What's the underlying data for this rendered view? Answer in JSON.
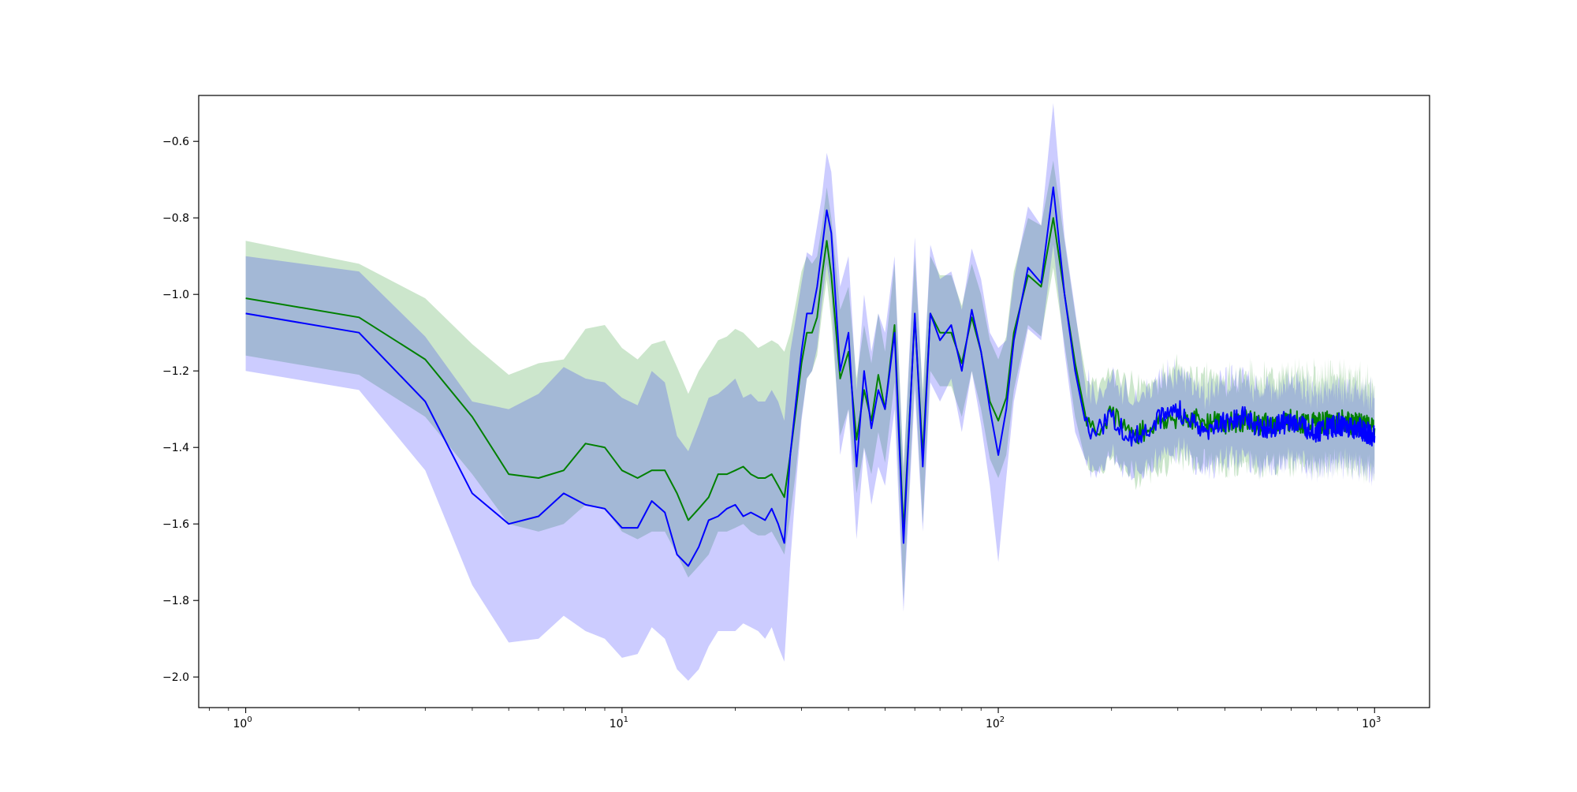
{
  "chart_data": {
    "type": "line",
    "title": "",
    "xlabel": "",
    "ylabel": "",
    "xscale": "log",
    "xlim": [
      0.75,
      1400
    ],
    "ylim": [
      -2.08,
      -0.48
    ],
    "grid": false,
    "legend": "none",
    "x_ticks": [
      {
        "value": 1,
        "base": "10",
        "exp": "0"
      },
      {
        "value": 10,
        "base": "10",
        "exp": "1"
      },
      {
        "value": 100,
        "base": "10",
        "exp": "2"
      },
      {
        "value": 1000,
        "base": "10",
        "exp": "3"
      }
    ],
    "y_ticks": [
      {
        "value": -0.6,
        "label": "−0.6"
      },
      {
        "value": -0.8,
        "label": "−0.8"
      },
      {
        "value": -1.0,
        "label": "−1.0"
      },
      {
        "value": -1.2,
        "label": "−1.2"
      },
      {
        "value": -1.4,
        "label": "−1.4"
      },
      {
        "value": -1.6,
        "label": "−1.6"
      },
      {
        "value": -1.8,
        "label": "−1.8"
      },
      {
        "value": -2.0,
        "label": "−2.0"
      }
    ],
    "series": [
      {
        "color": "#008000",
        "band_color": "#008000",
        "band_opacity": 0.2,
        "x": [
          1,
          2,
          3,
          4,
          5,
          6,
          7,
          8,
          9,
          10,
          11,
          12,
          13,
          14,
          15,
          16,
          17,
          18,
          19,
          20,
          21,
          22,
          23,
          24,
          25,
          26,
          27,
          28,
          29,
          30,
          31,
          32,
          33,
          34,
          35,
          36,
          38,
          40,
          42,
          44,
          46,
          48,
          50,
          53,
          56,
          60,
          63,
          66,
          70,
          75,
          80,
          85,
          90,
          95,
          100,
          105,
          110,
          120,
          130,
          140,
          150,
          160,
          170,
          180,
          200,
          230,
          260,
          300,
          350,
          400,
          450,
          500,
          600,
          700,
          800,
          900,
          1000
        ],
        "y": [
          -1.01,
          -1.06,
          -1.17,
          -1.32,
          -1.47,
          -1.48,
          -1.46,
          -1.39,
          -1.4,
          -1.46,
          -1.48,
          -1.46,
          -1.46,
          -1.52,
          -1.59,
          -1.56,
          -1.53,
          -1.47,
          -1.47,
          -1.46,
          -1.45,
          -1.47,
          -1.48,
          -1.48,
          -1.47,
          -1.5,
          -1.53,
          -1.42,
          -1.3,
          -1.18,
          -1.1,
          -1.1,
          -1.06,
          -0.95,
          -0.86,
          -0.95,
          -1.22,
          -1.15,
          -1.38,
          -1.25,
          -1.33,
          -1.21,
          -1.3,
          -1.08,
          -1.62,
          -1.06,
          -1.42,
          -1.05,
          -1.1,
          -1.1,
          -1.18,
          -1.06,
          -1.15,
          -1.28,
          -1.33,
          -1.27,
          -1.1,
          -0.95,
          -0.98,
          -0.8,
          -1.0,
          -1.18,
          -1.31,
          -1.35,
          -1.31,
          -1.37,
          -1.34,
          -1.32,
          -1.33,
          -1.34,
          -1.33,
          -1.34,
          -1.33,
          -1.34,
          -1.33,
          -1.34,
          -1.35
        ],
        "y_low": [
          -1.16,
          -1.21,
          -1.32,
          -1.47,
          -1.6,
          -1.62,
          -1.6,
          -1.55,
          -1.56,
          -1.62,
          -1.64,
          -1.62,
          -1.62,
          -1.68,
          -1.74,
          -1.71,
          -1.68,
          -1.62,
          -1.62,
          -1.61,
          -1.6,
          -1.62,
          -1.63,
          -1.63,
          -1.62,
          -1.65,
          -1.68,
          -1.58,
          -1.46,
          -1.32,
          -1.22,
          -1.2,
          -1.16,
          -1.05,
          -0.96,
          -1.07,
          -1.37,
          -1.3,
          -1.52,
          -1.4,
          -1.47,
          -1.36,
          -1.44,
          -1.23,
          -1.8,
          -1.22,
          -1.6,
          -1.2,
          -1.24,
          -1.24,
          -1.32,
          -1.2,
          -1.3,
          -1.43,
          -1.48,
          -1.42,
          -1.25,
          -1.08,
          -1.11,
          -0.93,
          -1.13,
          -1.32,
          -1.43,
          -1.46,
          -1.43,
          -1.48,
          -1.45,
          -1.43,
          -1.44,
          -1.45,
          -1.44,
          -1.45,
          -1.44,
          -1.45,
          -1.44,
          -1.45,
          -1.46
        ],
        "y_high": [
          -0.86,
          -0.92,
          -1.01,
          -1.13,
          -1.21,
          -1.18,
          -1.17,
          -1.09,
          -1.08,
          -1.14,
          -1.17,
          -1.13,
          -1.12,
          -1.19,
          -1.26,
          -1.2,
          -1.16,
          -1.12,
          -1.11,
          -1.09,
          -1.1,
          -1.12,
          -1.14,
          -1.13,
          -1.12,
          -1.13,
          -1.15,
          -1.1,
          -1.02,
          -0.94,
          -0.9,
          -0.92,
          -0.9,
          -0.82,
          -0.72,
          -0.8,
          -1.04,
          -0.98,
          -1.22,
          -1.08,
          -1.18,
          -1.05,
          -1.15,
          -0.92,
          -1.45,
          -0.9,
          -1.25,
          -0.9,
          -0.95,
          -0.95,
          -1.03,
          -0.92,
          -1.0,
          -1.12,
          -1.17,
          -1.11,
          -0.94,
          -0.8,
          -0.82,
          -0.65,
          -0.86,
          -1.05,
          -1.2,
          -1.23,
          -1.2,
          -1.25,
          -1.22,
          -1.2,
          -1.21,
          -1.22,
          -1.21,
          -1.22,
          -1.21,
          -1.22,
          -1.21,
          -1.22,
          -1.24
        ]
      },
      {
        "color": "#0000ff",
        "band_color": "#0000ff",
        "band_opacity": 0.2,
        "x": [
          1,
          2,
          3,
          4,
          5,
          6,
          7,
          8,
          9,
          10,
          11,
          12,
          13,
          14,
          15,
          16,
          17,
          18,
          19,
          20,
          21,
          22,
          23,
          24,
          25,
          26,
          27,
          28,
          29,
          30,
          31,
          32,
          33,
          34,
          35,
          36,
          38,
          40,
          42,
          44,
          46,
          48,
          50,
          53,
          56,
          60,
          63,
          66,
          70,
          75,
          80,
          85,
          90,
          95,
          100,
          105,
          110,
          120,
          130,
          140,
          150,
          160,
          170,
          180,
          200,
          230,
          260,
          300,
          350,
          400,
          450,
          500,
          600,
          700,
          800,
          900,
          1000
        ],
        "y": [
          -1.05,
          -1.1,
          -1.28,
          -1.52,
          -1.6,
          -1.58,
          -1.52,
          -1.55,
          -1.56,
          -1.61,
          -1.61,
          -1.54,
          -1.57,
          -1.68,
          -1.71,
          -1.66,
          -1.59,
          -1.58,
          -1.56,
          -1.55,
          -1.58,
          -1.57,
          -1.58,
          -1.59,
          -1.56,
          -1.6,
          -1.65,
          -1.42,
          -1.28,
          -1.15,
          -1.05,
          -1.05,
          -0.98,
          -0.88,
          -0.78,
          -0.84,
          -1.2,
          -1.1,
          -1.45,
          -1.2,
          -1.35,
          -1.25,
          -1.3,
          -1.1,
          -1.65,
          -1.05,
          -1.45,
          -1.05,
          -1.12,
          -1.08,
          -1.2,
          -1.04,
          -1.15,
          -1.3,
          -1.42,
          -1.3,
          -1.12,
          -0.93,
          -0.97,
          -0.72,
          -1.0,
          -1.2,
          -1.33,
          -1.36,
          -1.32,
          -1.38,
          -1.33,
          -1.3,
          -1.36,
          -1.33,
          -1.32,
          -1.35,
          -1.33,
          -1.36,
          -1.34,
          -1.35,
          -1.37
        ],
        "y_low": [
          -1.2,
          -1.25,
          -1.46,
          -1.76,
          -1.91,
          -1.9,
          -1.84,
          -1.88,
          -1.9,
          -1.95,
          -1.94,
          -1.87,
          -1.9,
          -1.98,
          -2.01,
          -1.98,
          -1.92,
          -1.88,
          -1.88,
          -1.88,
          -1.86,
          -1.87,
          -1.88,
          -1.9,
          -1.87,
          -1.92,
          -1.96,
          -1.7,
          -1.5,
          -1.33,
          -1.22,
          -1.2,
          -1.14,
          -1.02,
          -0.92,
          -1.0,
          -1.42,
          -1.3,
          -1.64,
          -1.4,
          -1.55,
          -1.45,
          -1.5,
          -1.3,
          -1.83,
          -1.25,
          -1.62,
          -1.23,
          -1.28,
          -1.22,
          -1.36,
          -1.2,
          -1.34,
          -1.5,
          -1.7,
          -1.48,
          -1.28,
          -1.09,
          -1.12,
          -0.87,
          -1.15,
          -1.36,
          -1.43,
          -1.46,
          -1.42,
          -1.48,
          -1.43,
          -1.4,
          -1.46,
          -1.43,
          -1.42,
          -1.45,
          -1.43,
          -1.46,
          -1.44,
          -1.45,
          -1.47
        ],
        "y_high": [
          -0.9,
          -0.94,
          -1.11,
          -1.28,
          -1.3,
          -1.26,
          -1.19,
          -1.22,
          -1.23,
          -1.27,
          -1.29,
          -1.2,
          -1.23,
          -1.37,
          -1.41,
          -1.34,
          -1.27,
          -1.26,
          -1.24,
          -1.22,
          -1.27,
          -1.26,
          -1.28,
          -1.28,
          -1.25,
          -1.28,
          -1.33,
          -1.15,
          -1.06,
          -0.97,
          -0.89,
          -0.9,
          -0.82,
          -0.74,
          -0.63,
          -0.68,
          -0.98,
          -0.9,
          -1.25,
          -1.0,
          -1.15,
          -1.05,
          -1.1,
          -0.9,
          -1.47,
          -0.85,
          -1.28,
          -0.87,
          -0.96,
          -0.94,
          -1.04,
          -0.88,
          -0.96,
          -1.1,
          -1.14,
          -1.12,
          -0.96,
          -0.77,
          -0.82,
          -0.5,
          -0.85,
          -1.04,
          -1.23,
          -1.26,
          -1.22,
          -1.28,
          -1.23,
          -1.2,
          -1.26,
          -1.23,
          -1.22,
          -1.25,
          -1.23,
          -1.26,
          -1.24,
          -1.25,
          -1.27
        ]
      }
    ]
  }
}
